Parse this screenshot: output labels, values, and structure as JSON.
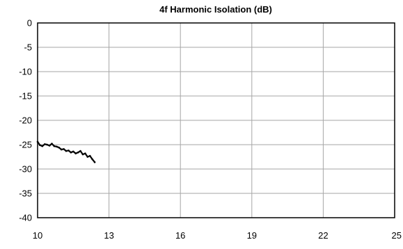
{
  "chart_data": {
    "type": "line",
    "title": "4f Harmonic Isolation (dB)",
    "xlabel": "",
    "ylabel": "",
    "xlim": [
      10,
      25
    ],
    "ylim": [
      -40,
      0
    ],
    "x_ticks": [
      "10",
      "13",
      "16",
      "19",
      "22",
      "25"
    ],
    "y_ticks": [
      "0",
      "-5",
      "-10",
      "-15",
      "-20",
      "-25",
      "-30",
      "-35",
      "-40"
    ],
    "grid": true,
    "legend": "none",
    "series": [
      {
        "color": "#000000",
        "x": [
          10.0,
          10.1,
          10.2,
          10.3,
          10.4,
          10.5,
          10.6,
          10.7,
          10.8,
          10.9,
          11.0,
          11.1,
          11.2,
          11.3,
          11.4,
          11.5,
          11.6,
          11.7,
          11.8,
          11.9,
          12.0,
          12.1,
          12.2,
          12.3,
          12.4
        ],
        "y": [
          -24.4,
          -25.1,
          -25.3,
          -24.9,
          -25.0,
          -25.2,
          -24.8,
          -25.3,
          -25.4,
          -25.6,
          -26.0,
          -25.9,
          -26.3,
          -26.2,
          -26.6,
          -26.4,
          -26.8,
          -26.6,
          -26.3,
          -27.0,
          -26.8,
          -27.5,
          -27.3,
          -28.0,
          -28.6
        ]
      }
    ]
  }
}
